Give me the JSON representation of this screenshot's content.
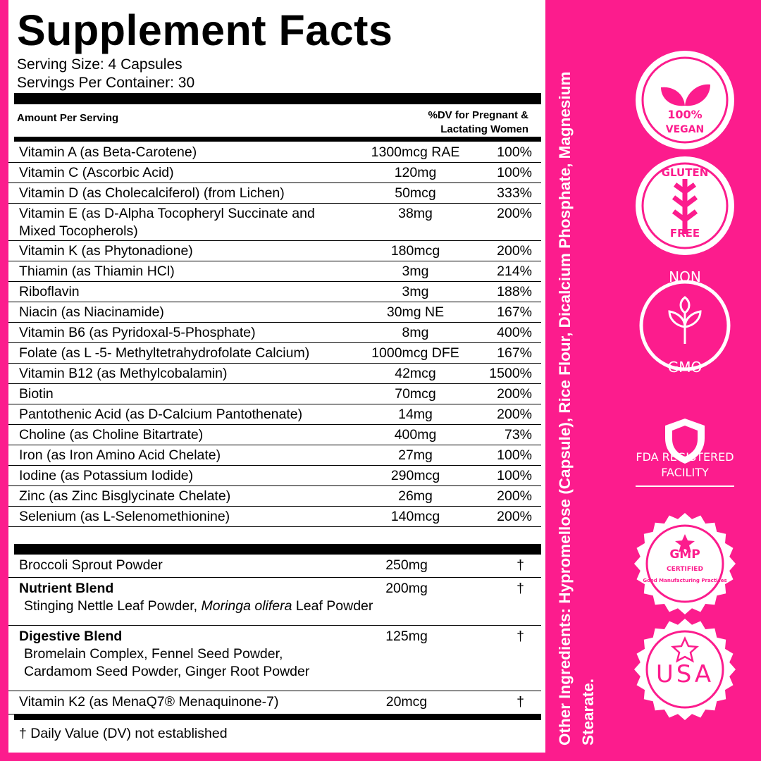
{
  "header": {
    "title": "Supplement Facts",
    "serving_size": "Serving Size: 4 Capsules",
    "servings_per_container": "Servings Per Container: 30"
  },
  "table": {
    "columns": [
      "Amount Per Serving",
      "%DV for Pregnant & Lactating Women"
    ],
    "rows": [
      [
        "Vitamin A (as Beta-Carotene)",
        "1300mcg RAE",
        "100%"
      ],
      [
        "Vitamin C (Ascorbic Acid)",
        "120mg",
        "100%"
      ],
      [
        "Vitamin D (as Cholecalciferol) (from Lichen)",
        "50mcg",
        "333%"
      ],
      [
        "Vitamin E (as D-Alpha Tocopheryl Succinate and Mixed Tocopherols)",
        "38mg",
        "200%"
      ],
      [
        "Vitamin K (as Phytonadione)",
        "180mcg",
        "200%"
      ],
      [
        "Thiamin (as Thiamin HCl)",
        "3mg",
        "214%"
      ],
      [
        "Riboflavin",
        "3mg",
        "188%"
      ],
      [
        "Niacin (as Niacinamide)",
        "30mg NE",
        "167%"
      ],
      [
        "Vitamin B6 (as Pyridoxal-5-Phosphate)",
        "8mg",
        "400%"
      ],
      [
        "Folate (as L -5- Methyltetrahydrofolate Calcium)",
        "1000mcg DFE",
        "167%"
      ],
      [
        "Vitamin B12 (as Methylcobalamin)",
        "42mcg",
        "1500%"
      ],
      [
        "Biotin",
        "70mcg",
        "200%"
      ],
      [
        "Pantothenic Acid (as D-Calcium Pantothenate)",
        "14mg",
        "200%"
      ],
      [
        "Choline (as Choline Bitartrate)",
        "400mg",
        "73%"
      ],
      [
        "Iron (as Iron Amino Acid Chelate)",
        "27mg",
        "100%"
      ],
      [
        "Iodine (as Potassium Iodide)",
        "290mcg",
        "100%"
      ],
      [
        "Zinc (as Zinc Bisglycinate Chelate)",
        "26mg",
        "200%"
      ],
      [
        "Selenium (as L-Selenomethionine)",
        "140mcg",
        "200%"
      ]
    ]
  },
  "blends": [
    {
      "name": "Broccoli Sprout Powder",
      "amount": "250mg",
      "dv": "†"
    },
    {
      "name": "Nutrient Blend",
      "amount": "200mg",
      "dv": "†",
      "ingredients": [
        "Stinging Nettle Leaf Powder,",
        "Moringa olifera",
        "Leaf Powder"
      ]
    },
    {
      "name": "Digestive Blend",
      "amount": "125mg",
      "dv": "†",
      "ingredients": [
        "Bromelain Complex, Fennel Seed Powder,",
        "Cardamom Seed Powder, Ginger Root Powder"
      ]
    },
    {
      "name": "Vitamin K2 (as MenaQ7®  Menaquinone-7)",
      "amount": "20mcg",
      "dv": "†"
    }
  ],
  "footnote": "† Daily Value (DV) not established",
  "other_ingredients": "Other Ingredients: Hypromellose (Capsule), Rice Flour, Dicalcium Phosphate, Magnesium Stearate.",
  "badges": [
    [
      "100%",
      "VEGAN"
    ],
    [
      "GLUTEN",
      "FREE"
    ],
    [
      "NON",
      "GMO"
    ],
    [
      "FDA REGISTERED",
      "FACILITY"
    ],
    [
      "GMP",
      "CERTIFIED",
      "Good Manufacturing Practices"
    ],
    [
      "USA"
    ]
  ]
}
